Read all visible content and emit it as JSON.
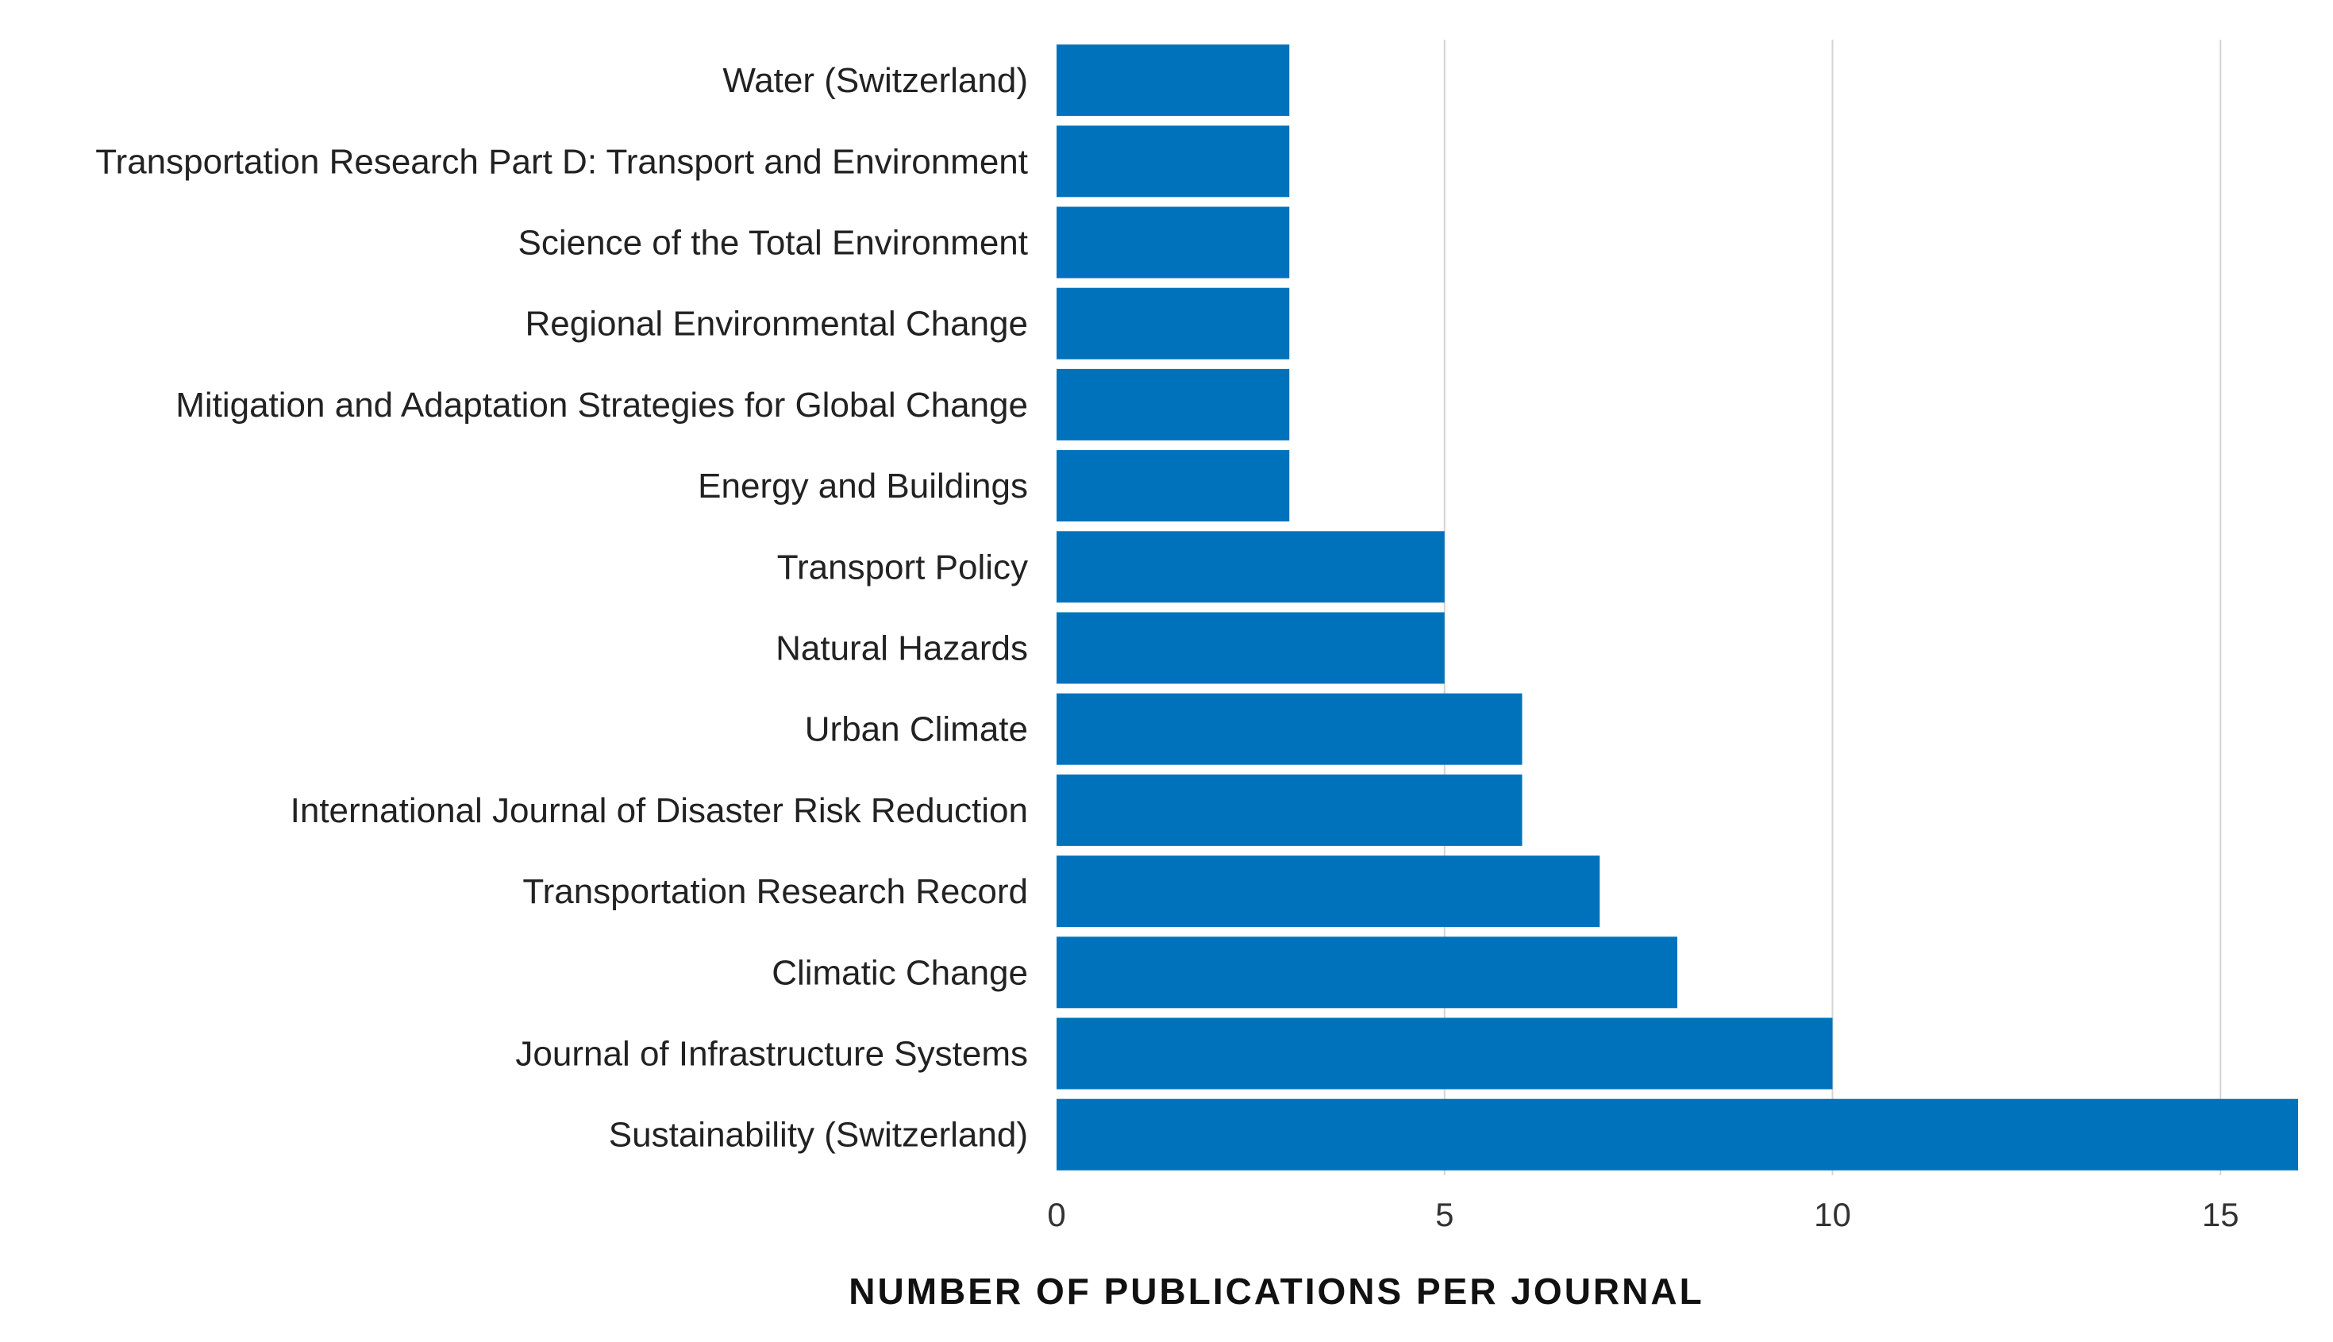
{
  "chart_data": {
    "type": "bar",
    "orientation": "horizontal",
    "categories": [
      "Water (Switzerland)",
      "Transportation Research Part D: Transport and Environment",
      "Science of the Total Environment",
      "Regional Environmental Change",
      "Mitigation and Adaptation Strategies for Global Change",
      "Energy and Buildings",
      "Transport Policy",
      "Natural Hazards",
      "Urban Climate",
      "International Journal of Disaster Risk Reduction",
      "Transportation Research Record",
      "Climatic Change",
      "Journal of Infrastructure Systems",
      "Sustainability (Switzerland)"
    ],
    "values": [
      3,
      3,
      3,
      3,
      3,
      3,
      5,
      5,
      6,
      6,
      7,
      8,
      10,
      16
    ],
    "xlim": [
      0,
      16
    ],
    "xticks": [
      "0",
      "5",
      "10",
      "15"
    ],
    "xtick_values": [
      0,
      5,
      10,
      15
    ],
    "xlabel": "NUMBER OF PUBLICATIONS PER JOURNAL",
    "ylabel": "",
    "title": "",
    "grid": true,
    "bar_color": "#0072bc",
    "grid_color": "#d4d4d4"
  }
}
